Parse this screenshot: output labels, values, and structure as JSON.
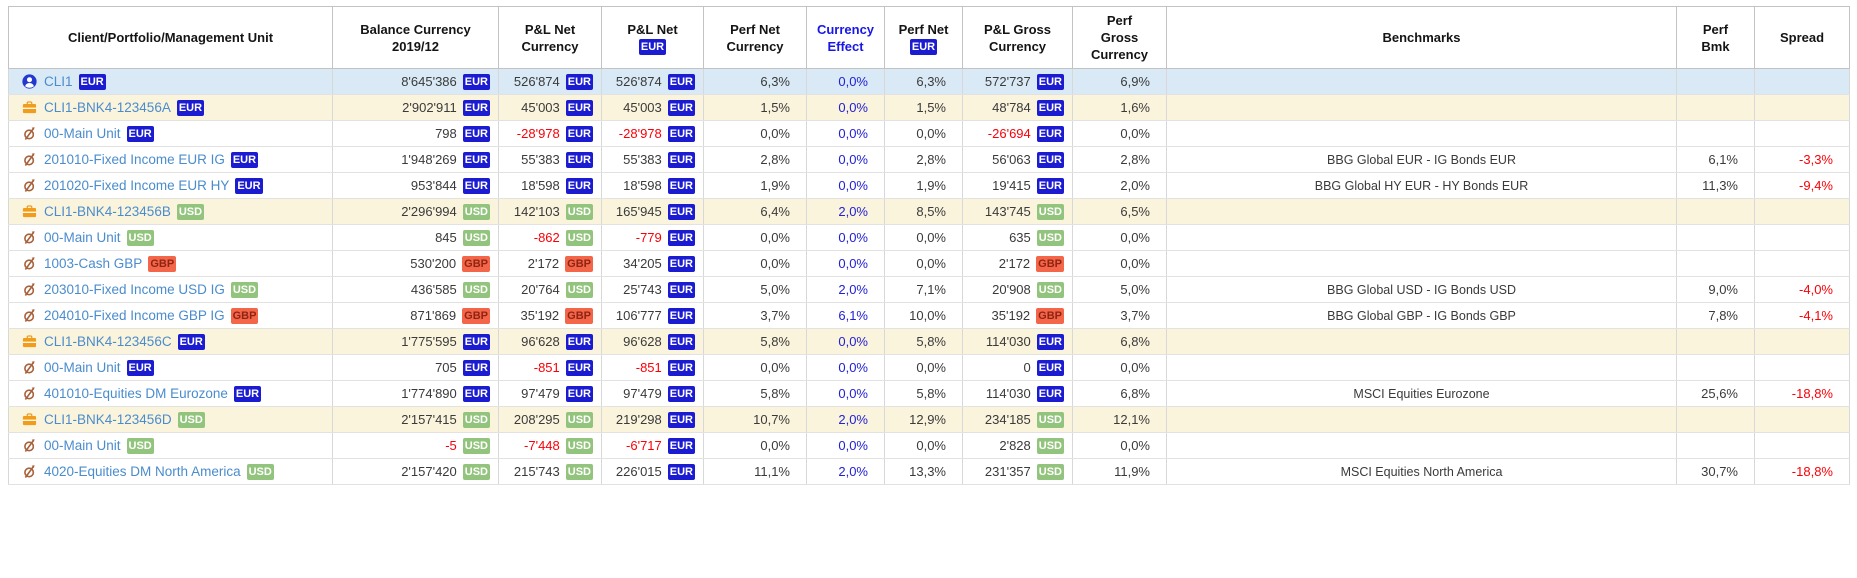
{
  "theme": {
    "accent_blue": "#2121d6",
    "negative_red": "#fb0007",
    "name_text_blue": "#4a8ccd",
    "client_row_bg": "#d9eaf6",
    "portfolio_row_bg": "#fbf4dd",
    "badge_eur_bg": "#1b1bd1",
    "badge_usd_bg": "#93c47d",
    "badge_gbp_bg": "#f4664a"
  },
  "table": {
    "columns": [
      {
        "key": "name",
        "label_lines": [
          "Client/Portfolio/Management Unit"
        ]
      },
      {
        "key": "balance",
        "label_lines": [
          "Balance Currency",
          "2019/12"
        ]
      },
      {
        "key": "pl_net_currency",
        "label_lines": [
          "P&L Net",
          "Currency"
        ]
      },
      {
        "key": "pl_net_eur",
        "label_lines": [
          "P&L Net"
        ],
        "badge": "EUR"
      },
      {
        "key": "perf_net_currency",
        "label_lines": [
          "Perf Net",
          "Currency"
        ]
      },
      {
        "key": "currency_effect",
        "label_lines": [
          "Currency",
          "Effect"
        ],
        "accent": true
      },
      {
        "key": "perf_net_eur",
        "label_lines": [
          "Perf Net"
        ],
        "badge": "EUR"
      },
      {
        "key": "pl_gross_currency",
        "label_lines": [
          "P&L Gross",
          "Currency"
        ]
      },
      {
        "key": "perf_gross_currency",
        "label_lines": [
          "Perf",
          "Gross",
          "Currency"
        ]
      },
      {
        "key": "benchmark",
        "label_lines": [
          "Benchmarks"
        ]
      },
      {
        "key": "perf_bmk",
        "label_lines": [
          "Perf",
          "Bmk"
        ]
      },
      {
        "key": "spread",
        "label_lines": [
          "Spread"
        ]
      }
    ],
    "rows": [
      {
        "type": "client",
        "icon": "user-icon",
        "name": "CLI1",
        "name_badge": "EUR",
        "cells": {
          "balance": {
            "text": "8'645'386",
            "badge": "EUR"
          },
          "pl_net_currency": {
            "text": "526'874",
            "badge": "EUR"
          },
          "pl_net_eur": {
            "text": "526'874",
            "badge": "EUR"
          },
          "perf_net_currency": "6,3%",
          "currency_effect": "0,0%",
          "perf_net_eur": "6,3%",
          "pl_gross_currency": {
            "text": "572'737",
            "badge": "EUR"
          },
          "perf_gross_currency": "6,9%",
          "benchmark": "",
          "perf_bmk": "",
          "spread": ""
        }
      },
      {
        "type": "portfolio",
        "icon": "briefcase-icon",
        "name": "CLI1-BNK4-123456A",
        "name_badge": "EUR",
        "cells": {
          "balance": {
            "text": "2'902'911",
            "badge": "EUR"
          },
          "pl_net_currency": {
            "text": "45'003",
            "badge": "EUR"
          },
          "pl_net_eur": {
            "text": "45'003",
            "badge": "EUR"
          },
          "perf_net_currency": "1,5%",
          "currency_effect": "0,0%",
          "perf_net_eur": "1,5%",
          "pl_gross_currency": {
            "text": "48'784",
            "badge": "EUR"
          },
          "perf_gross_currency": "1,6%",
          "benchmark": "",
          "perf_bmk": "",
          "spread": ""
        }
      },
      {
        "type": "unit",
        "icon": "management-unit-icon",
        "name": "00-Main Unit",
        "name_badge": "EUR",
        "cells": {
          "balance": {
            "text": "798",
            "badge": "EUR"
          },
          "pl_net_currency": {
            "text": "-28'978",
            "badge": "EUR"
          },
          "pl_net_eur": {
            "text": "-28'978",
            "badge": "EUR"
          },
          "perf_net_currency": "0,0%",
          "currency_effect": "0,0%",
          "perf_net_eur": "0,0%",
          "pl_gross_currency": {
            "text": "-26'694",
            "badge": "EUR"
          },
          "perf_gross_currency": "0,0%",
          "benchmark": "",
          "perf_bmk": "",
          "spread": ""
        }
      },
      {
        "type": "unit",
        "icon": "management-unit-icon",
        "name": "201010-Fixed Income EUR IG",
        "name_badge": "EUR",
        "cells": {
          "balance": {
            "text": "1'948'269",
            "badge": "EUR"
          },
          "pl_net_currency": {
            "text": "55'383",
            "badge": "EUR"
          },
          "pl_net_eur": {
            "text": "55'383",
            "badge": "EUR"
          },
          "perf_net_currency": "2,8%",
          "currency_effect": "0,0%",
          "perf_net_eur": "2,8%",
          "pl_gross_currency": {
            "text": "56'063",
            "badge": "EUR"
          },
          "perf_gross_currency": "2,8%",
          "benchmark": "BBG Global EUR - IG Bonds EUR",
          "perf_bmk": "6,1%",
          "spread": "-3,3%"
        }
      },
      {
        "type": "unit",
        "icon": "management-unit-icon",
        "name": "201020-Fixed Income EUR HY",
        "name_badge": "EUR",
        "cells": {
          "balance": {
            "text": "953'844",
            "badge": "EUR"
          },
          "pl_net_currency": {
            "text": "18'598",
            "badge": "EUR"
          },
          "pl_net_eur": {
            "text": "18'598",
            "badge": "EUR"
          },
          "perf_net_currency": "1,9%",
          "currency_effect": "0,0%",
          "perf_net_eur": "1,9%",
          "pl_gross_currency": {
            "text": "19'415",
            "badge": "EUR"
          },
          "perf_gross_currency": "2,0%",
          "benchmark": "BBG Global HY EUR - HY Bonds EUR",
          "perf_bmk": "11,3%",
          "spread": "-9,4%"
        }
      },
      {
        "type": "portfolio",
        "icon": "briefcase-icon",
        "name": "CLI1-BNK4-123456B",
        "name_badge": "USD",
        "cells": {
          "balance": {
            "text": "2'296'994",
            "badge": "USD"
          },
          "pl_net_currency": {
            "text": "142'103",
            "badge": "USD"
          },
          "pl_net_eur": {
            "text": "165'945",
            "badge": "EUR"
          },
          "perf_net_currency": "6,4%",
          "currency_effect": "2,0%",
          "perf_net_eur": "8,5%",
          "pl_gross_currency": {
            "text": "143'745",
            "badge": "USD"
          },
          "perf_gross_currency": "6,5%",
          "benchmark": "",
          "perf_bmk": "",
          "spread": ""
        }
      },
      {
        "type": "unit",
        "icon": "management-unit-icon",
        "name": "00-Main Unit",
        "name_badge": "USD",
        "cells": {
          "balance": {
            "text": "845",
            "badge": "USD"
          },
          "pl_net_currency": {
            "text": "-862",
            "badge": "USD"
          },
          "pl_net_eur": {
            "text": "-779",
            "badge": "EUR"
          },
          "perf_net_currency": "0,0%",
          "currency_effect": "0,0%",
          "perf_net_eur": "0,0%",
          "pl_gross_currency": {
            "text": "635",
            "badge": "USD"
          },
          "perf_gross_currency": "0,0%",
          "benchmark": "",
          "perf_bmk": "",
          "spread": ""
        }
      },
      {
        "type": "unit",
        "icon": "management-unit-icon",
        "name": "1003-Cash GBP",
        "name_badge": "GBP",
        "cells": {
          "balance": {
            "text": "530'200",
            "badge": "GBP"
          },
          "pl_net_currency": {
            "text": "2'172",
            "badge": "GBP"
          },
          "pl_net_eur": {
            "text": "34'205",
            "badge": "EUR"
          },
          "perf_net_currency": "0,0%",
          "currency_effect": "0,0%",
          "perf_net_eur": "0,0%",
          "pl_gross_currency": {
            "text": "2'172",
            "badge": "GBP"
          },
          "perf_gross_currency": "0,0%",
          "benchmark": "",
          "perf_bmk": "",
          "spread": ""
        }
      },
      {
        "type": "unit",
        "icon": "management-unit-icon",
        "name": "203010-Fixed Income USD IG",
        "name_badge": "USD",
        "cells": {
          "balance": {
            "text": "436'585",
            "badge": "USD"
          },
          "pl_net_currency": {
            "text": "20'764",
            "badge": "USD"
          },
          "pl_net_eur": {
            "text": "25'743",
            "badge": "EUR"
          },
          "perf_net_currency": "5,0%",
          "currency_effect": "2,0%",
          "perf_net_eur": "7,1%",
          "pl_gross_currency": {
            "text": "20'908",
            "badge": "USD"
          },
          "perf_gross_currency": "5,0%",
          "benchmark": "BBG Global USD - IG Bonds USD",
          "perf_bmk": "9,0%",
          "spread": "-4,0%"
        }
      },
      {
        "type": "unit",
        "icon": "management-unit-icon",
        "name": "204010-Fixed Income GBP IG",
        "name_badge": "GBP",
        "cells": {
          "balance": {
            "text": "871'869",
            "badge": "GBP"
          },
          "pl_net_currency": {
            "text": "35'192",
            "badge": "GBP"
          },
          "pl_net_eur": {
            "text": "106'777",
            "badge": "EUR"
          },
          "perf_net_currency": "3,7%",
          "currency_effect": "6,1%",
          "perf_net_eur": "10,0%",
          "pl_gross_currency": {
            "text": "35'192",
            "badge": "GBP"
          },
          "perf_gross_currency": "3,7%",
          "benchmark": "BBG Global GBP - IG Bonds GBP",
          "perf_bmk": "7,8%",
          "spread": "-4,1%"
        }
      },
      {
        "type": "portfolio",
        "icon": "briefcase-icon",
        "name": "CLI1-BNK4-123456C",
        "name_badge": "EUR",
        "cells": {
          "balance": {
            "text": "1'775'595",
            "badge": "EUR"
          },
          "pl_net_currency": {
            "text": "96'628",
            "badge": "EUR"
          },
          "pl_net_eur": {
            "text": "96'628",
            "badge": "EUR"
          },
          "perf_net_currency": "5,8%",
          "currency_effect": "0,0%",
          "perf_net_eur": "5,8%",
          "pl_gross_currency": {
            "text": "114'030",
            "badge": "EUR"
          },
          "perf_gross_currency": "6,8%",
          "benchmark": "",
          "perf_bmk": "",
          "spread": ""
        }
      },
      {
        "type": "unit",
        "icon": "management-unit-icon",
        "name": "00-Main Unit",
        "name_badge": "EUR",
        "cells": {
          "balance": {
            "text": "705",
            "badge": "EUR"
          },
          "pl_net_currency": {
            "text": "-851",
            "badge": "EUR"
          },
          "pl_net_eur": {
            "text": "-851",
            "badge": "EUR"
          },
          "perf_net_currency": "0,0%",
          "currency_effect": "0,0%",
          "perf_net_eur": "0,0%",
          "pl_gross_currency": {
            "text": "0",
            "badge": "EUR"
          },
          "perf_gross_currency": "0,0%",
          "benchmark": "",
          "perf_bmk": "",
          "spread": ""
        }
      },
      {
        "type": "unit",
        "icon": "management-unit-icon",
        "name": "401010-Equities DM Eurozone",
        "name_badge": "EUR",
        "cells": {
          "balance": {
            "text": "1'774'890",
            "badge": "EUR"
          },
          "pl_net_currency": {
            "text": "97'479",
            "badge": "EUR"
          },
          "pl_net_eur": {
            "text": "97'479",
            "badge": "EUR"
          },
          "perf_net_currency": "5,8%",
          "currency_effect": "0,0%",
          "perf_net_eur": "5,8%",
          "pl_gross_currency": {
            "text": "114'030",
            "badge": "EUR"
          },
          "perf_gross_currency": "6,8%",
          "benchmark": "MSCI Equities Eurozone",
          "perf_bmk": "25,6%",
          "spread": "-18,8%"
        }
      },
      {
        "type": "portfolio",
        "icon": "briefcase-icon",
        "name": "CLI1-BNK4-123456D",
        "name_badge": "USD",
        "cells": {
          "balance": {
            "text": "2'157'415",
            "badge": "USD"
          },
          "pl_net_currency": {
            "text": "208'295",
            "badge": "USD"
          },
          "pl_net_eur": {
            "text": "219'298",
            "badge": "EUR"
          },
          "perf_net_currency": "10,7%",
          "currency_effect": "2,0%",
          "perf_net_eur": "12,9%",
          "pl_gross_currency": {
            "text": "234'185",
            "badge": "USD"
          },
          "perf_gross_currency": "12,1%",
          "benchmark": "",
          "perf_bmk": "",
          "spread": ""
        }
      },
      {
        "type": "unit",
        "icon": "management-unit-icon",
        "name": "00-Main Unit",
        "name_badge": "USD",
        "cells": {
          "balance": {
            "text": "-5",
            "badge": "USD"
          },
          "pl_net_currency": {
            "text": "-7'448",
            "badge": "USD"
          },
          "pl_net_eur": {
            "text": "-6'717",
            "badge": "EUR"
          },
          "perf_net_currency": "0,0%",
          "currency_effect": "0,0%",
          "perf_net_eur": "0,0%",
          "pl_gross_currency": {
            "text": "2'828",
            "badge": "USD"
          },
          "perf_gross_currency": "0,0%",
          "benchmark": "",
          "perf_bmk": "",
          "spread": ""
        }
      },
      {
        "type": "unit",
        "icon": "management-unit-icon",
        "name": "4020-Equities DM North America",
        "name_badge": "USD",
        "cells": {
          "balance": {
            "text": "2'157'420",
            "badge": "USD"
          },
          "pl_net_currency": {
            "text": "215'743",
            "badge": "USD"
          },
          "pl_net_eur": {
            "text": "226'015",
            "badge": "EUR"
          },
          "perf_net_currency": "11,1%",
          "currency_effect": "2,0%",
          "perf_net_eur": "13,3%",
          "pl_gross_currency": {
            "text": "231'357",
            "badge": "USD"
          },
          "perf_gross_currency": "11,9%",
          "benchmark": "MSCI Equities North America",
          "perf_bmk": "30,7%",
          "spread": "-18,8%"
        }
      }
    ]
  }
}
